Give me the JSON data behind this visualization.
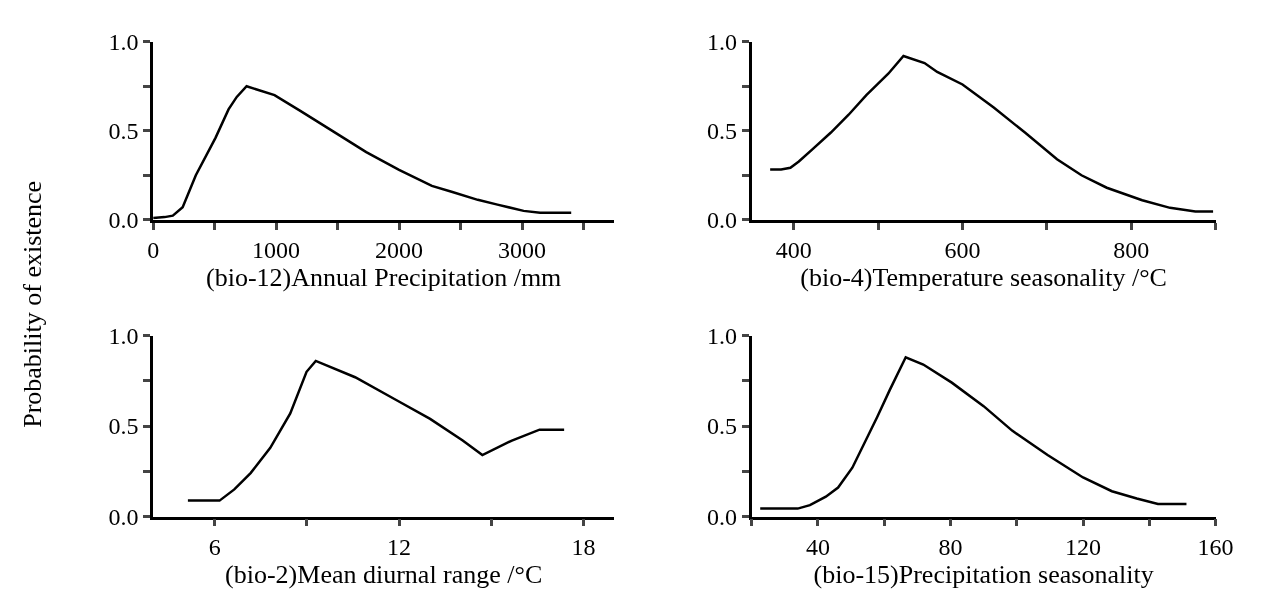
{
  "chart_data": [
    {
      "type": "line",
      "xlabel": "(bio-12)Annual Precipitation /mm",
      "ylabel": "Probability of existence",
      "xlim": [
        0,
        3750
      ],
      "xticks": [
        0,
        {
          "value": 500,
          "label": null
        },
        1000,
        {
          "value": 1500,
          "label": null
        },
        2000,
        {
          "value": 2500,
          "label": null
        },
        3000,
        {
          "value": 3500,
          "label": null
        }
      ],
      "ylim": [
        0,
        1
      ],
      "yticks": [
        {
          "value": 0,
          "label": "0.0"
        },
        {
          "value": 0.25,
          "label": null
        },
        {
          "value": 0.5,
          "label": "0.5"
        },
        {
          "value": 0.75,
          "label": null
        },
        {
          "value": 1,
          "label": "1.0"
        }
      ],
      "grid": false,
      "legend": false,
      "marker": "none",
      "line_style": "solid",
      "series": [
        {
          "color": "#000000",
          "x": [
            0,
            93,
            160,
            240,
            347,
            507,
            613,
            680,
            760,
            987,
            1200,
            1467,
            1733,
            2000,
            2267,
            2427,
            2640,
            2800,
            3013,
            3147,
            3400
          ],
          "values": [
            0.01,
            0.015,
            0.023,
            0.07,
            0.25,
            0.46,
            0.62,
            0.69,
            0.75,
            0.7,
            0.61,
            0.495,
            0.38,
            0.28,
            0.19,
            0.157,
            0.112,
            0.085,
            0.05,
            0.04,
            0.04
          ]
        }
      ]
    },
    {
      "type": "line",
      "xlabel": "(bio-4)Temperature seasonality /°C",
      "xlim": [
        350,
        900
      ],
      "xticks": [
        400,
        {
          "value": 500,
          "label": null
        },
        600,
        {
          "value": 700,
          "label": null
        },
        800,
        {
          "value": 900,
          "label": null
        }
      ],
      "ylim": [
        0,
        1
      ],
      "yticks": [
        {
          "value": 0,
          "label": "0.0"
        },
        {
          "value": 0.25,
          "label": null
        },
        {
          "value": 0.5,
          "label": "0.5"
        },
        {
          "value": 0.75,
          "label": null
        },
        {
          "value": 1,
          "label": "1.0"
        }
      ],
      "grid": false,
      "legend": false,
      "marker": "none",
      "line_style": "solid",
      "series": [
        {
          "color": "#000000",
          "x": [
            372,
            385,
            396,
            406,
            423,
            444,
            465,
            486,
            499,
            512,
            530,
            555,
            570,
            600,
            637,
            674,
            712,
            741,
            771,
            813,
            846,
            876,
            897
          ],
          "values": [
            0.283,
            0.283,
            0.292,
            0.327,
            0.4,
            0.49,
            0.59,
            0.7,
            0.76,
            0.82,
            0.92,
            0.88,
            0.83,
            0.76,
            0.63,
            0.49,
            0.34,
            0.25,
            0.18,
            0.11,
            0.067,
            0.046,
            0.046
          ]
        }
      ]
    },
    {
      "type": "line",
      "xlabel": "(bio-2)Mean diurnal range /°C",
      "xlim": [
        4,
        19
      ],
      "xticks": [
        6,
        {
          "value": 9,
          "label": null
        },
        12,
        {
          "value": 15,
          "label": null
        },
        18
      ],
      "ylim": [
        0,
        1
      ],
      "yticks": [
        {
          "value": 0,
          "label": "0.0"
        },
        {
          "value": 0.25,
          "label": null
        },
        {
          "value": 0.5,
          "label": "0.5"
        },
        {
          "value": 0.75,
          "label": null
        },
        {
          "value": 1,
          "label": "1.0"
        }
      ],
      "grid": false,
      "legend": false,
      "marker": "none",
      "line_style": "solid",
      "series": [
        {
          "color": "#000000",
          "x": [
            5.13,
            6.16,
            6.64,
            7.17,
            7.81,
            8.46,
            8.99,
            9.29,
            10.57,
            11.95,
            13.01,
            14.07,
            14.71,
            15.67,
            16.57,
            17.37
          ],
          "values": [
            0.088,
            0.088,
            0.15,
            0.24,
            0.38,
            0.57,
            0.8,
            0.86,
            0.77,
            0.64,
            0.54,
            0.42,
            0.34,
            0.42,
            0.48,
            0.48
          ]
        }
      ]
    },
    {
      "type": "line",
      "xlabel": "(bio-15)Precipitation seasonality",
      "xlim": [
        20,
        160
      ],
      "xticks": [
        {
          "value": 20,
          "label": null
        },
        40,
        {
          "value": 60,
          "label": null
        },
        80,
        {
          "value": 100,
          "label": null
        },
        120,
        {
          "value": 140,
          "label": null
        },
        160
      ],
      "ylim": [
        0,
        1
      ],
      "yticks": [
        {
          "value": 0,
          "label": "0.0"
        },
        {
          "value": 0.25,
          "label": null
        },
        {
          "value": 0.5,
          "label": "0.5"
        },
        {
          "value": 0.75,
          "label": null
        },
        {
          "value": 1,
          "label": "1.0"
        }
      ],
      "grid": false,
      "legend": false,
      "marker": "none",
      "line_style": "solid",
      "series": [
        {
          "color": "#000000",
          "x": [
            22.6,
            33.9,
            37.6,
            42.4,
            46.1,
            50.4,
            57.9,
            61.7,
            66.5,
            71.8,
            80.4,
            90,
            98.6,
            109.3,
            120,
            128.7,
            136.2,
            142.6,
            151.2
          ],
          "values": [
            0.044,
            0.044,
            0.063,
            0.11,
            0.16,
            0.27,
            0.55,
            0.7,
            0.88,
            0.84,
            0.74,
            0.61,
            0.475,
            0.34,
            0.216,
            0.14,
            0.1,
            0.069,
            0.069
          ]
        }
      ]
    }
  ]
}
